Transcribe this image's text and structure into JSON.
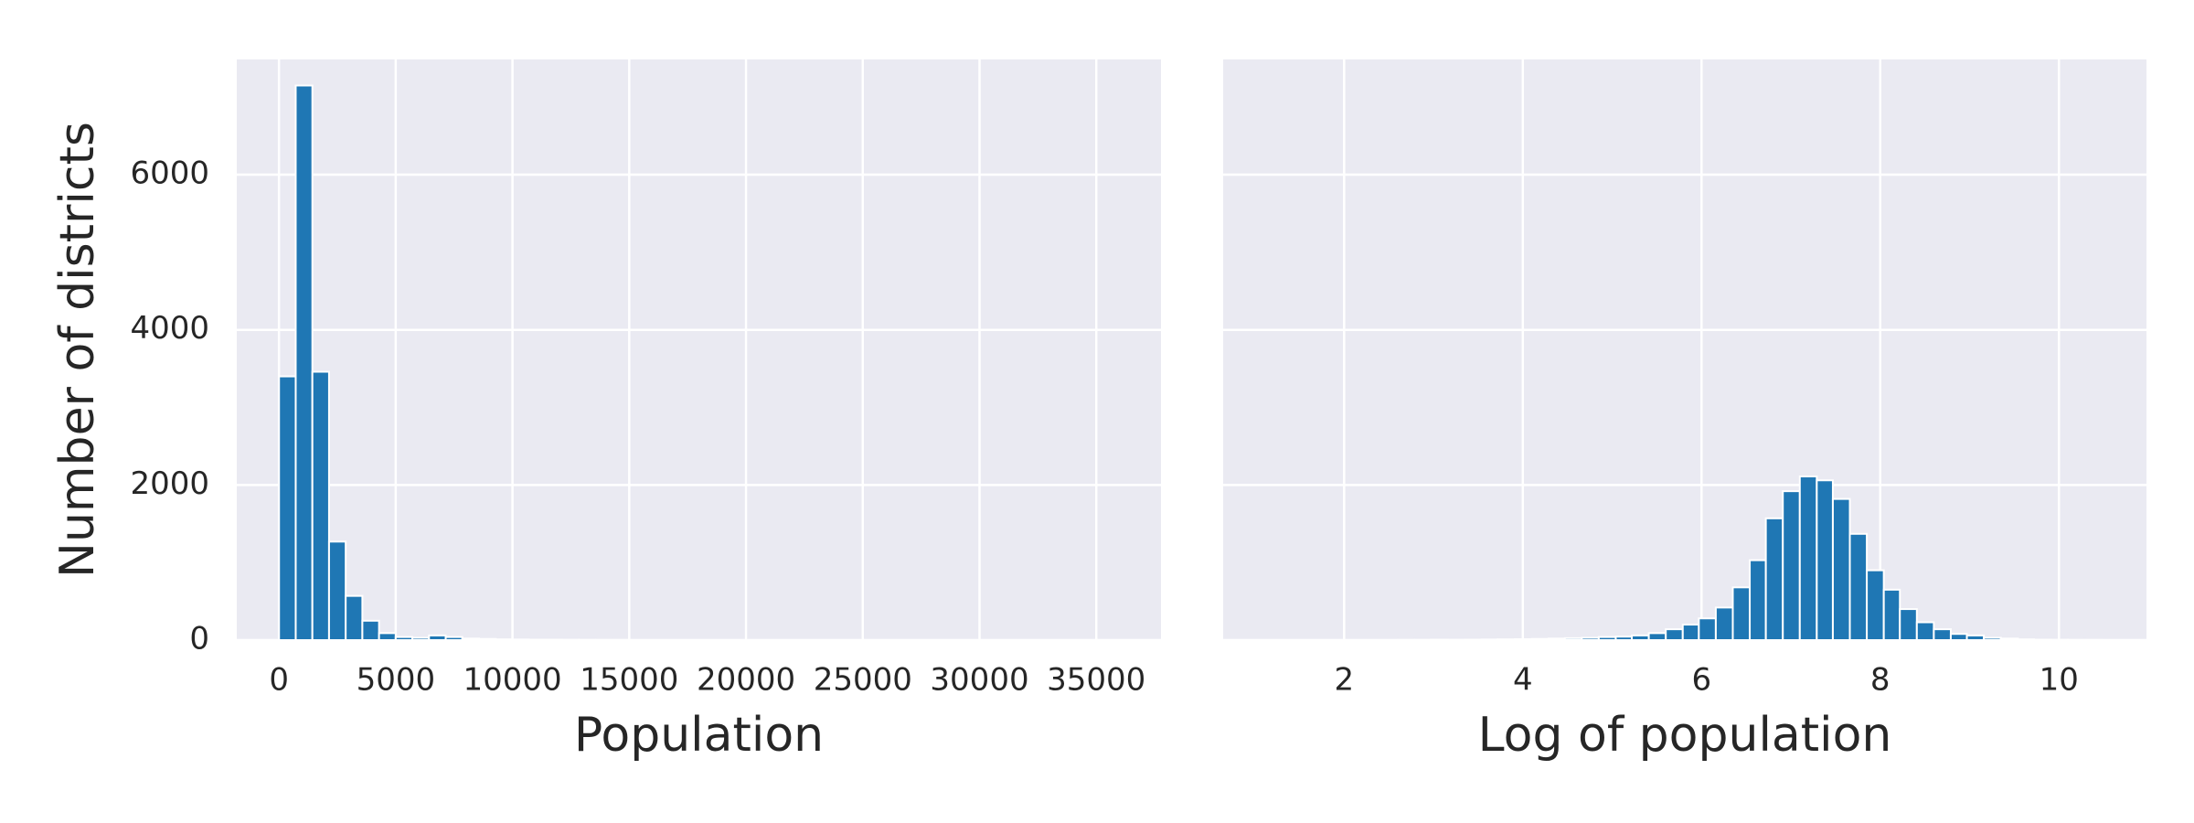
{
  "chart_data": [
    {
      "type": "histogram",
      "xlabel": "Population",
      "ylabel": "Number of districts",
      "color": "#1f77b4",
      "grid": true,
      "bins": [
        3,
        717,
        1430,
        2144,
        2857,
        3571,
        4285,
        4998,
        5712,
        6425,
        7139,
        7853,
        8566,
        9280,
        9993,
        10707,
        11421,
        12134,
        12848,
        13561,
        14275,
        14989,
        15702,
        16416,
        17129,
        17843,
        18557,
        19270,
        19984,
        20697,
        21411,
        22125,
        22838,
        23552,
        24265,
        24979,
        25693,
        26406,
        27120,
        27833,
        28547,
        29261,
        29974,
        30688,
        31401,
        32115,
        32829,
        33542,
        34256,
        34969,
        35682
      ],
      "values": [
        3400,
        7150,
        3460,
        1270,
        570,
        250,
        90,
        40,
        30,
        60,
        40,
        20,
        15,
        10,
        8,
        6,
        5,
        4,
        3,
        2,
        2,
        1,
        1,
        1,
        1,
        0,
        1,
        0,
        0,
        1,
        0,
        0,
        0,
        1,
        0,
        0,
        0,
        0,
        0,
        0,
        0,
        0,
        0,
        0,
        0,
        0,
        0,
        0,
        0,
        1
      ],
      "xlim": [
        -1807,
        37770
      ],
      "ylim": [
        0,
        7486
      ],
      "xticks": [
        0,
        5000,
        10000,
        15000,
        20000,
        25000,
        30000,
        35000
      ],
      "yticks": [
        0,
        2000,
        4000,
        6000
      ]
    },
    {
      "type": "histogram",
      "xlabel": "Log of population",
      "color": "#1f77b4",
      "grid": true,
      "ytick_labels": false,
      "bins": [
        1.1,
        1.29,
        1.47,
        1.66,
        1.85,
        2.04,
        2.22,
        2.41,
        2.6,
        2.79,
        2.97,
        3.16,
        3.35,
        3.54,
        3.72,
        3.91,
        4.1,
        4.29,
        4.47,
        4.66,
        4.85,
        5.04,
        5.22,
        5.41,
        5.6,
        5.79,
        5.97,
        6.16,
        6.35,
        6.54,
        6.72,
        6.91,
        7.1,
        7.29,
        7.47,
        7.66,
        7.85,
        8.04,
        8.22,
        8.41,
        8.6,
        8.79,
        8.97,
        9.16,
        9.35,
        9.54,
        9.72,
        9.91,
        10.1,
        10.29,
        10.48
      ],
      "values": [
        1,
        0,
        0,
        0,
        0,
        0,
        0,
        1,
        2,
        3,
        5,
        4,
        6,
        8,
        10,
        12,
        15,
        20,
        25,
        30,
        40,
        45,
        60,
        90,
        140,
        200,
        280,
        420,
        680,
        1030,
        1570,
        1920,
        2110,
        2060,
        1820,
        1370,
        900,
        650,
        400,
        230,
        140,
        80,
        60,
        30,
        20,
        10,
        6,
        4,
        2,
        2
      ],
      "xlim": [
        0.646,
        10.98
      ],
      "ylim": [
        0,
        7486
      ],
      "xticks": [
        2,
        4,
        6,
        8,
        10
      ],
      "yticks": [
        0,
        2000,
        4000,
        6000
      ]
    }
  ]
}
